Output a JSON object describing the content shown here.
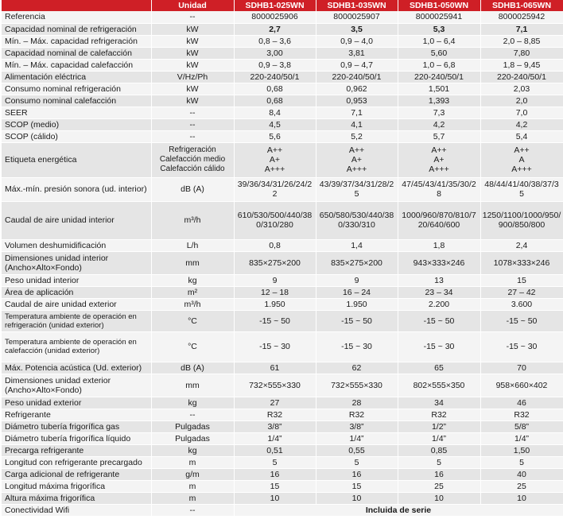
{
  "header": {
    "blank": "",
    "unit": "Unidad",
    "models": [
      "SDHB1-025WN",
      "SDHB1-035WN",
      "SDHB1-050WN",
      "SDHB1-065WN"
    ]
  },
  "rows": [
    {
      "label": "Referencia",
      "unit": "--",
      "values": [
        "8000025906",
        "8000025907",
        "8000025941",
        "8000025942"
      ]
    },
    {
      "label": "Capacidad nominal de refrigeración",
      "unit": "kW",
      "values": [
        "2,7",
        "3,5",
        "5,3",
        "7,1"
      ]
    },
    {
      "label": "Mín. – Máx. capacidad refrigeración",
      "unit": "kW",
      "values": [
        "0,8 – 3,6",
        "0,9 – 4,0",
        "1,0 – 6,4",
        "2,0 – 8,85"
      ]
    },
    {
      "label": "Capacidad nominal de calefacción",
      "unit": "kW",
      "values": [
        "3,00",
        "3,81",
        "5,60",
        "7,80"
      ]
    },
    {
      "label": "Mín. – Máx. capacidad calefacción",
      "unit": "kW",
      "values": [
        "0,9 – 3,8",
        "0,9 – 4,7",
        "1,0 – 6,8",
        "1,8 – 9,45"
      ]
    },
    {
      "label": "Alimentación eléctrica",
      "unit": "V/Hz/Ph",
      "values": [
        "220-240/50/1",
        "220-240/50/1",
        "220-240/50/1",
        "220-240/50/1"
      ]
    },
    {
      "label": "Consumo nominal refrigeración",
      "unit": "kW",
      "values": [
        "0,68",
        "0,962",
        "1,501",
        "2,03"
      ]
    },
    {
      "label": "Consumo nominal calefacción",
      "unit": "kW",
      "values": [
        "0,68",
        "0,953",
        "1,393",
        "2,0"
      ]
    },
    {
      "label": "SEER",
      "unit": "--",
      "values": [
        "8,4",
        "7,1",
        "7,3",
        "7,0"
      ]
    },
    {
      "label": "SCOP (medio)",
      "unit": "--",
      "values": [
        "4,5",
        "4,1",
        "4,2",
        "4,2"
      ]
    },
    {
      "label": "SCOP (cálido)",
      "unit": "--",
      "values": [
        "5,6",
        "5,2",
        "5,7",
        "5,4"
      ]
    }
  ],
  "energy": {
    "label": "Etiqueta energética",
    "sub": [
      "Refrigeración",
      "Calefacción medio",
      "Calefacción cálido"
    ],
    "values": [
      [
        "A++",
        "A+",
        "A+++"
      ],
      [
        "A++",
        "A+",
        "A+++"
      ],
      [
        "A++",
        "A+",
        "A+++"
      ],
      [
        "A++",
        "A",
        "A+++"
      ]
    ]
  },
  "rows2": [
    {
      "label": "Máx.-mín. presión sonora (ud. interior)",
      "unit": "dB (A)",
      "values": [
        "39/36/34/31/26/24/22",
        "43/39/37/34/31/28/25",
        "47/45/43/41/35/30/28",
        "48/44/41/40/38/37/35"
      ]
    },
    {
      "label": "Caudal de aire unidad interior",
      "unit": "m³/h",
      "values": [
        "610/530/500/440/380/310/280",
        "650/580/530/440/380/330/310",
        "1000/960/870/810/720/640/600",
        "1250/1100/1000/950/900/850/800"
      ]
    },
    {
      "label": "Volumen deshumidificación",
      "unit": "L/h",
      "values": [
        "0,8",
        "1,4",
        "1,8",
        "2,4"
      ]
    },
    {
      "label": "Dimensiones unidad interior (Ancho×Alto×Fondo)",
      "unit": "mm",
      "values": [
        "835×275×200",
        "835×275×200",
        "943×333×246",
        "1078×333×246"
      ]
    },
    {
      "label": "Peso unidad interior",
      "unit": "kg",
      "values": [
        "9",
        "9",
        "13",
        "15"
      ]
    },
    {
      "label": "Área de aplicación",
      "unit": "m²",
      "values": [
        "12 – 18",
        "16 – 24",
        "23 – 34",
        "27 – 42"
      ]
    },
    {
      "label": "Caudal de aire unidad exterior",
      "unit": "m³/h",
      "values": [
        "1.950",
        "1.950",
        "2.200",
        "3.600"
      ]
    },
    {
      "label": "Temperatura ambiente de operación en refrigeración (unidad exterior)",
      "unit": "°C",
      "values": [
        "-15 ~ 50",
        "-15 ~ 50",
        "-15 ~ 50",
        "-15 ~ 50"
      ]
    },
    {
      "label": "Temperatura ambiente de operación en calefacción (unidad exterior)",
      "unit": "°C",
      "values": [
        "-15 ~ 30",
        "-15 ~ 30",
        "-15 ~ 30",
        "-15 ~ 30"
      ]
    },
    {
      "label": "Máx. Potencia acústica (Ud. exterior)",
      "unit": "dB (A)",
      "values": [
        "61",
        "62",
        "65",
        "70"
      ]
    },
    {
      "label": "Dimensiones unidad exterior (Ancho×Alto×Fondo)",
      "unit": "mm",
      "values": [
        "732×555×330",
        "732×555×330",
        "802×555×350",
        "958×660×402"
      ]
    },
    {
      "label": "Peso unidad exterior",
      "unit": "kg",
      "values": [
        "27",
        "28",
        "34",
        "46"
      ]
    },
    {
      "label": "Refrigerante",
      "unit": "--",
      "values": [
        "R32",
        "R32",
        "R32",
        "R32"
      ]
    },
    {
      "label": "Diámetro tubería frigorífica gas",
      "unit": "Pulgadas",
      "values": [
        "3/8”",
        "3/8”",
        "1/2”",
        "5/8”"
      ]
    },
    {
      "label": "Diámetro tubería frigorífica líquido",
      "unit": "Pulgadas",
      "values": [
        "1/4”",
        "1/4”",
        "1/4”",
        "1/4”"
      ]
    },
    {
      "label": "Precarga refrigerante",
      "unit": "kg",
      "values": [
        "0,51",
        "0,55",
        "0,85",
        "1,50"
      ]
    },
    {
      "label": "Longitud con refrigerante precargado",
      "unit": "m",
      "values": [
        "5",
        "5",
        "5",
        "5"
      ]
    },
    {
      "label": "Carga adicional de refrigerante",
      "unit": "g/m",
      "values": [
        "16",
        "16",
        "16",
        "40"
      ]
    },
    {
      "label": "Longitud máxima frigorífica",
      "unit": "m",
      "values": [
        "15",
        "15",
        "25",
        "25"
      ]
    },
    {
      "label": "Altura máxima frigorífica",
      "unit": "m",
      "values": [
        "10",
        "10",
        "10",
        "10"
      ]
    }
  ],
  "wifi": {
    "label": "Conectividad Wifi",
    "unit": "--",
    "value": "Incluida de serie"
  }
}
